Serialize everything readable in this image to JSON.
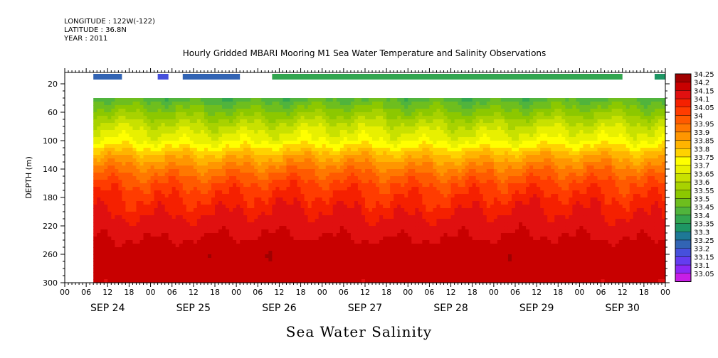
{
  "header": {
    "longitude": "LONGITUDE : 122W(-122)",
    "latitude": "LATITUDE : 36.8N",
    "year": "YEAR : 2011"
  },
  "chart_data": {
    "type": "heatmap",
    "title": "Hourly Gridded MBARI Mooring M1 Sea Water Temperature and Salinity Observations",
    "xlabel": "Sea Water Salinity",
    "ylabel": "DEPTH (m)",
    "x_hour_ticks": [
      "00",
      "06",
      "12",
      "18",
      "00",
      "06",
      "12",
      "18",
      "00",
      "06",
      "12",
      "18",
      "00",
      "06",
      "12",
      "18",
      "00",
      "06",
      "12",
      "18",
      "00",
      "06",
      "12",
      "18",
      "00",
      "06",
      "12",
      "18",
      "00"
    ],
    "x_date_labels": [
      "SEP 24",
      "SEP 25",
      "SEP 26",
      "SEP 27",
      "SEP 28",
      "SEP 29",
      "SEP 30"
    ],
    "xlim_hours": [
      0,
      168
    ],
    "data_start_hour": 8,
    "y_ticks": [
      "20",
      "60",
      "100",
      "140",
      "180",
      "220",
      "260",
      "300"
    ],
    "ylim": [
      300,
      4
    ],
    "surface_depth_m": 10,
    "legend_levels": [
      "34.25",
      "34.2",
      "34.15",
      "34.1",
      "34.05",
      "34",
      "33.95",
      "33.9",
      "33.85",
      "33.8",
      "33.75",
      "33.7",
      "33.65",
      "33.6",
      "33.55",
      "33.5",
      "33.45",
      "33.4",
      "33.35",
      "33.3",
      "33.25",
      "33.2",
      "33.15",
      "33.1",
      "33.05"
    ],
    "legend_colors": [
      "#a00000",
      "#c80000",
      "#e01010",
      "#f52000",
      "#ff3c00",
      "#ff5a00",
      "#ff7800",
      "#ff9600",
      "#ffb400",
      "#ffd200",
      "#ffff00",
      "#e8f000",
      "#c8e100",
      "#a8d200",
      "#8cc800",
      "#6ebe1e",
      "#50b43c",
      "#32a550",
      "#1e9664",
      "#1e7896",
      "#3264b4",
      "#4650dc",
      "#643cf0",
      "#8c28f5",
      "#c81ee6"
    ],
    "surface_observations": [
      {
        "start_hour": 8,
        "end_hour": 16,
        "value": 33.25
      },
      {
        "start_hour": 26,
        "end_hour": 29,
        "value": 33.2
      },
      {
        "start_hour": 33,
        "end_hour": 49,
        "value": 33.25
      },
      {
        "start_hour": 58,
        "end_hour": 156,
        "value": 33.4
      },
      {
        "start_hour": 165,
        "end_hour": 168,
        "value": 33.35
      }
    ],
    "depth_profile_mean": [
      {
        "depth": 40,
        "value": 33.45
      },
      {
        "depth": 60,
        "value": 33.55
      },
      {
        "depth": 80,
        "value": 33.65
      },
      {
        "depth": 100,
        "value": 33.72
      },
      {
        "depth": 120,
        "value": 33.85
      },
      {
        "depth": 140,
        "value": 33.95
      },
      {
        "depth": 160,
        "value": 34.03
      },
      {
        "depth": 180,
        "value": 34.08
      },
      {
        "depth": 200,
        "value": 34.12
      },
      {
        "depth": 220,
        "value": 34.15
      },
      {
        "depth": 240,
        "value": 34.18
      },
      {
        "depth": 260,
        "value": 34.21
      },
      {
        "depth": 280,
        "value": 34.2
      },
      {
        "depth": 300,
        "value": 34.19
      }
    ],
    "grid": false
  }
}
